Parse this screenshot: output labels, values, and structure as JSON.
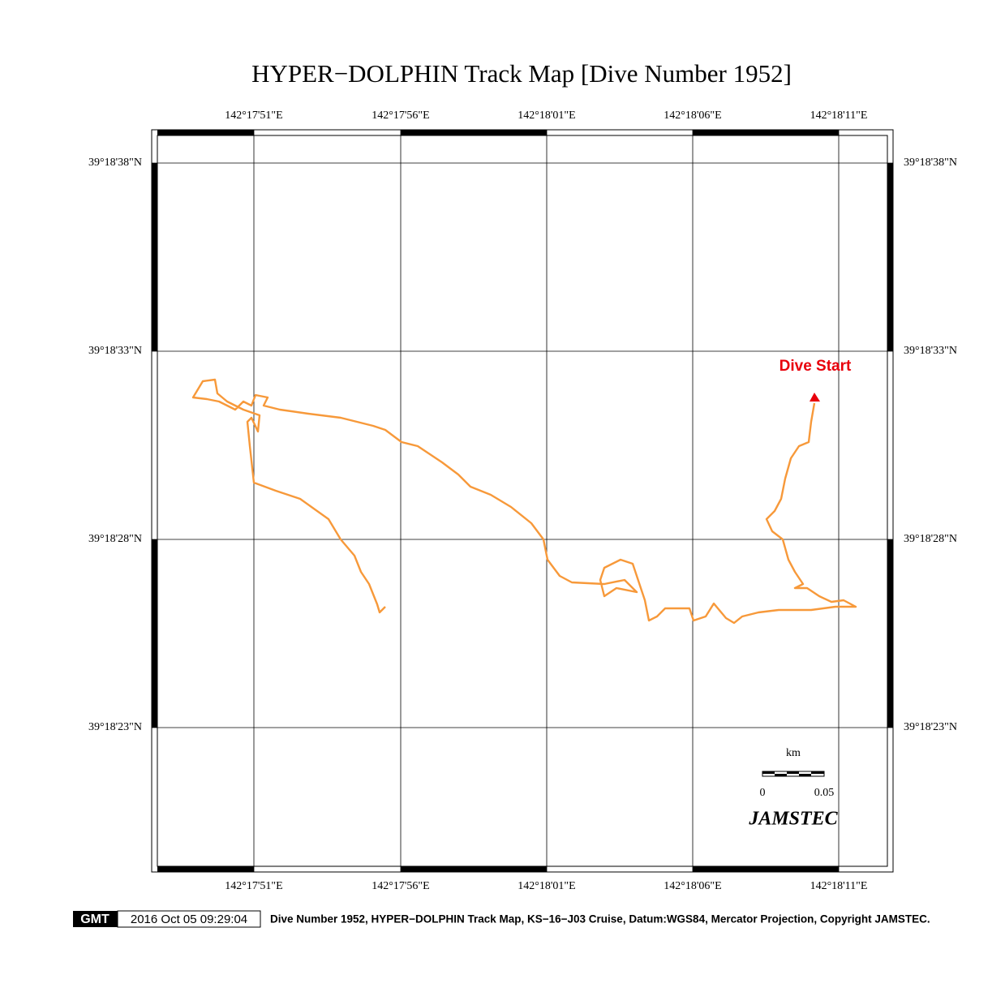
{
  "title": "HYPER−DOLPHIN Track Map [Dive Number 1952]",
  "map": {
    "lon_labels": [
      "142°17'51\"E",
      "142°17'56\"E",
      "142°18'01\"E",
      "142°18'06\"E",
      "142°18'11\"E"
    ],
    "lat_labels": [
      "39°18'38\"N",
      "39°18'33\"N",
      "39°18'28\"N",
      "39°18'23\"N"
    ],
    "marker_label": "Dive Start",
    "scale": {
      "unit": "km",
      "labels": [
        "0",
        "0.05"
      ]
    },
    "logo": "JAMSTEC"
  },
  "footer": {
    "logo": "GMT",
    "timestamp": "2016 Oct 05 09:29:04",
    "caption": "Dive Number 1952, HYPER−DOLPHIN Track Map, KS−16−J03 Cruise, Datum:WGS84, Mercator Projection, Copyright JAMSTEC."
  }
}
